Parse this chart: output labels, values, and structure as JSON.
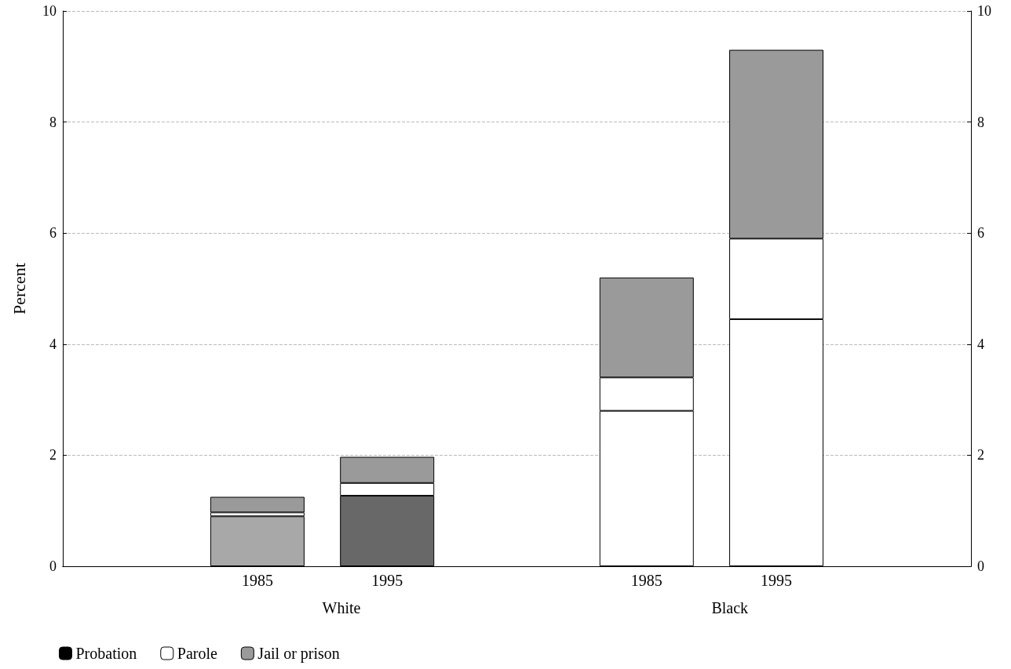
{
  "chart_data": {
    "type": "bar",
    "stacked": true,
    "ylabel": "Percent",
    "categories": [
      null,
      "1985",
      "1995",
      null,
      "1985",
      "1995",
      null
    ],
    "series": [
      {
        "name": "Probation",
        "color": "#000000",
        "colors": [
          null,
          "#a8a8a8",
          "#686868",
          null,
          "#ffffff",
          "#ffffff",
          null
        ],
        "values": [
          null,
          0.9,
          1.27,
          null,
          2.8,
          4.45,
          null
        ]
      },
      {
        "name": "Parole",
        "color": "#ffffff",
        "values": [
          null,
          0.07,
          0.23,
          null,
          0.6,
          1.45,
          null
        ]
      },
      {
        "name": "Jail or prison",
        "color": "#9a9a9a",
        "values": [
          null,
          0.28,
          0.47,
          null,
          1.8,
          3.4,
          null
        ]
      }
    ],
    "annotations": [
      "White",
      "Black"
    ],
    "ylim": [
      0,
      10
    ],
    "yticks": [
      0,
      2,
      4,
      6,
      8,
      10
    ],
    "y2lim": [
      0,
      10
    ],
    "y2ticks": [
      0,
      2,
      4,
      6,
      8,
      10
    ],
    "grid": "y",
    "legend": "bottom left"
  }
}
